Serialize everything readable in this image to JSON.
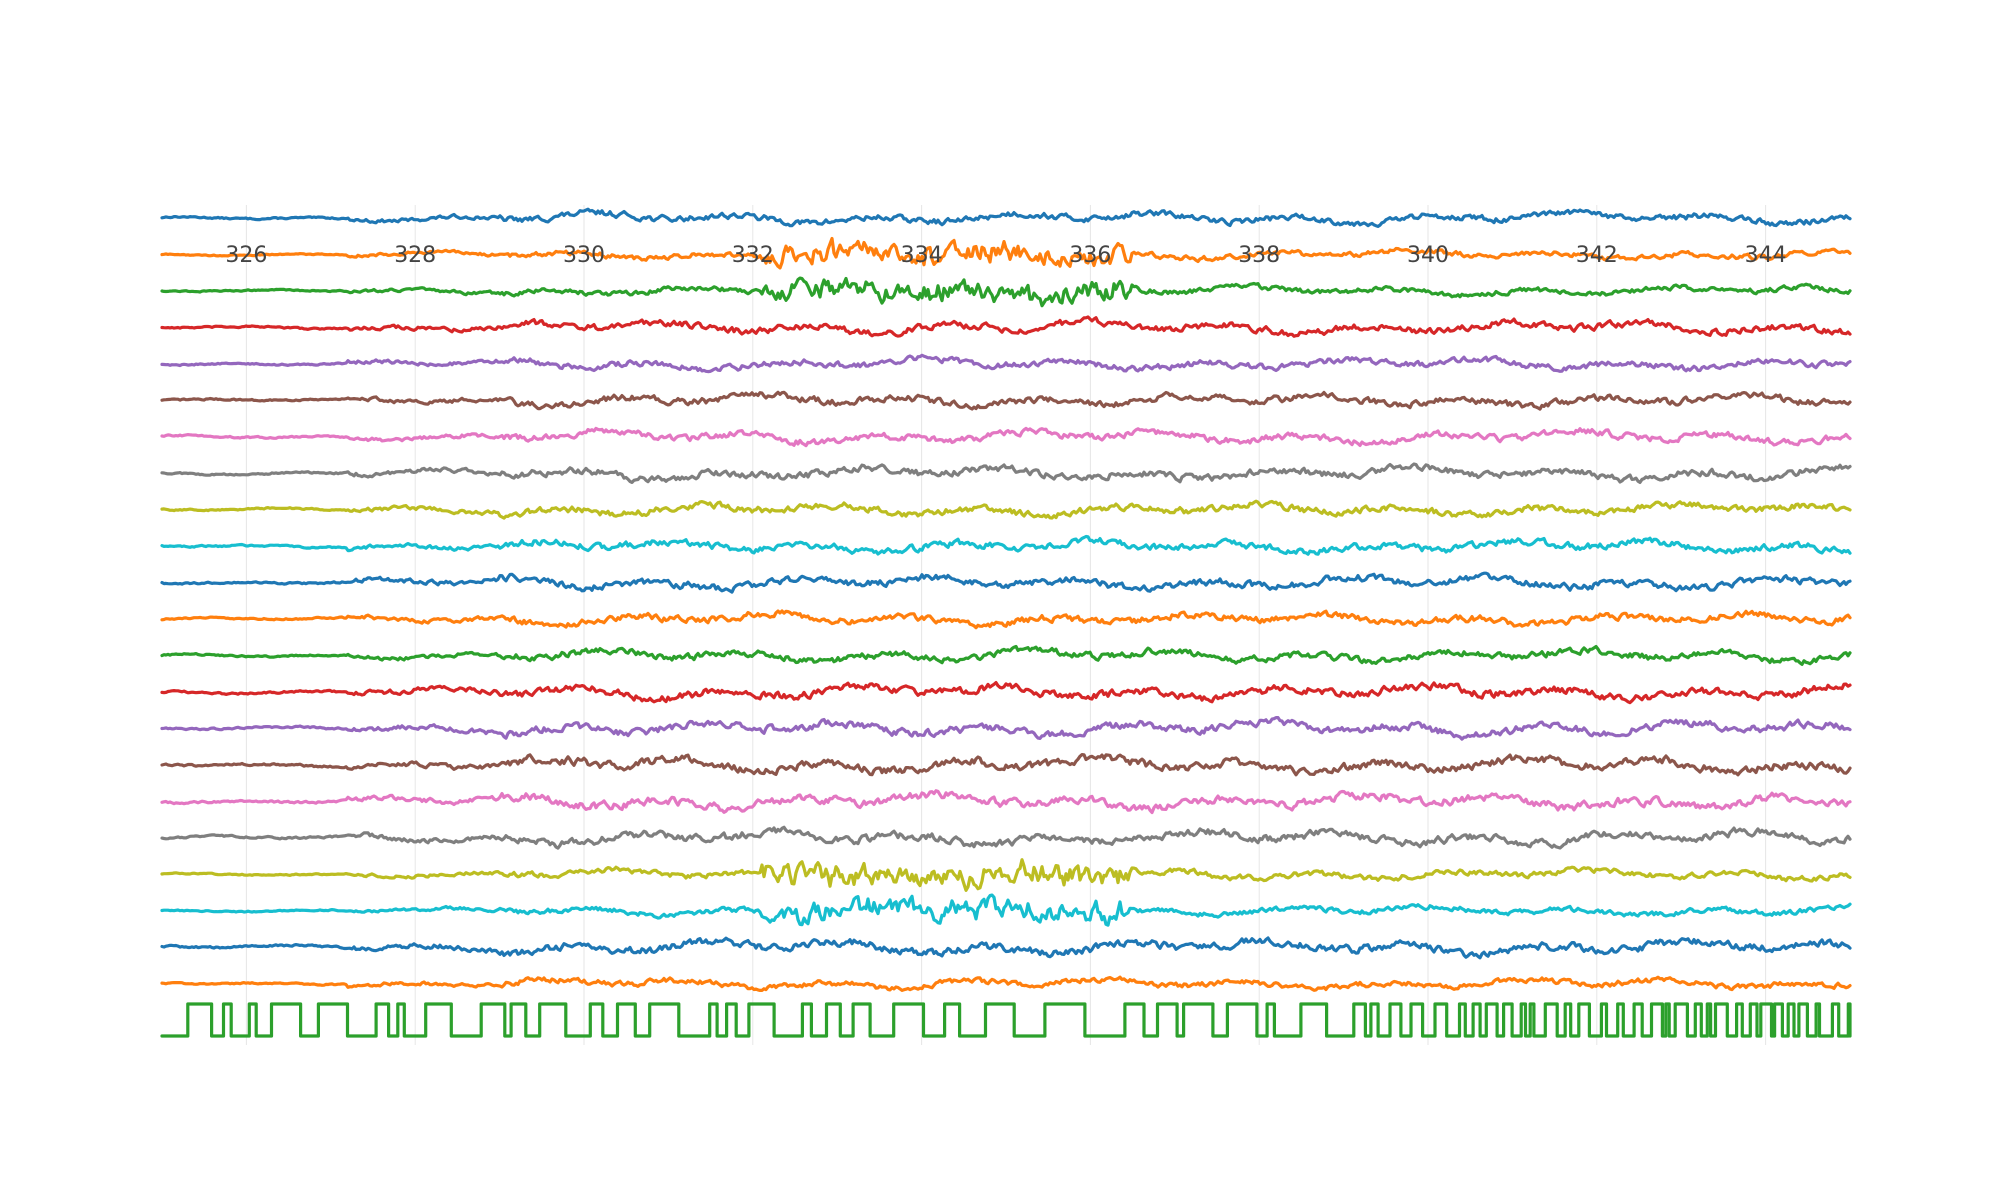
{
  "chart_data": {
    "type": "line",
    "title": "",
    "xlabel": "",
    "ylabel": "",
    "xlim": [
      325,
      345
    ],
    "x_ticks": [
      326,
      328,
      330,
      332,
      334,
      336,
      338,
      340,
      342,
      344
    ],
    "tick_labels": [
      "326",
      "328",
      "330",
      "332",
      "334",
      "336",
      "338",
      "340",
      "342",
      "344"
    ],
    "grid": true,
    "legend": "none",
    "series": [
      {
        "color": "#1f77b4",
        "kind": "signal",
        "amplitude": 0.55,
        "burst": false
      },
      {
        "color": "#ff7f0e",
        "kind": "signal",
        "amplitude": 0.45,
        "burst": true
      },
      {
        "color": "#2ca02c",
        "kind": "signal",
        "amplitude": 0.45,
        "burst": true
      },
      {
        "color": "#d62728",
        "kind": "signal",
        "amplitude": 0.6,
        "burst": false
      },
      {
        "color": "#9467bd",
        "kind": "signal",
        "amplitude": 0.55,
        "burst": false
      },
      {
        "color": "#8c564b",
        "kind": "signal",
        "amplitude": 0.6,
        "burst": false
      },
      {
        "color": "#e377c2",
        "kind": "signal",
        "amplitude": 0.6,
        "burst": false
      },
      {
        "color": "#7f7f7f",
        "kind": "signal",
        "amplitude": 0.65,
        "burst": false
      },
      {
        "color": "#bcbd22",
        "kind": "signal",
        "amplitude": 0.6,
        "burst": false
      },
      {
        "color": "#17becf",
        "kind": "signal",
        "amplitude": 0.6,
        "burst": false
      },
      {
        "color": "#1f77b4",
        "kind": "signal",
        "amplitude": 0.65,
        "burst": false
      },
      {
        "color": "#ff7f0e",
        "kind": "signal",
        "amplitude": 0.6,
        "burst": false
      },
      {
        "color": "#2ca02c",
        "kind": "signal",
        "amplitude": 0.6,
        "burst": false
      },
      {
        "color": "#d62728",
        "kind": "signal",
        "amplitude": 0.7,
        "burst": false
      },
      {
        "color": "#9467bd",
        "kind": "signal",
        "amplitude": 0.7,
        "burst": false
      },
      {
        "color": "#8c564b",
        "kind": "signal",
        "amplitude": 0.75,
        "burst": false
      },
      {
        "color": "#e377c2",
        "kind": "signal",
        "amplitude": 0.75,
        "burst": false
      },
      {
        "color": "#7f7f7f",
        "kind": "signal",
        "amplitude": 0.7,
        "burst": false
      },
      {
        "color": "#bcbd22",
        "kind": "signal",
        "amplitude": 0.5,
        "burst": true
      },
      {
        "color": "#17becf",
        "kind": "signal",
        "amplitude": 0.45,
        "burst": true
      },
      {
        "color": "#1f77b4",
        "kind": "signal",
        "amplitude": 0.7,
        "burst": false
      },
      {
        "color": "#ff7f0e",
        "kind": "signal",
        "amplitude": 0.5,
        "burst": false
      },
      {
        "color": "#2ca02c",
        "kind": "digital",
        "amplitude": 1.0,
        "burst": false
      }
    ]
  }
}
